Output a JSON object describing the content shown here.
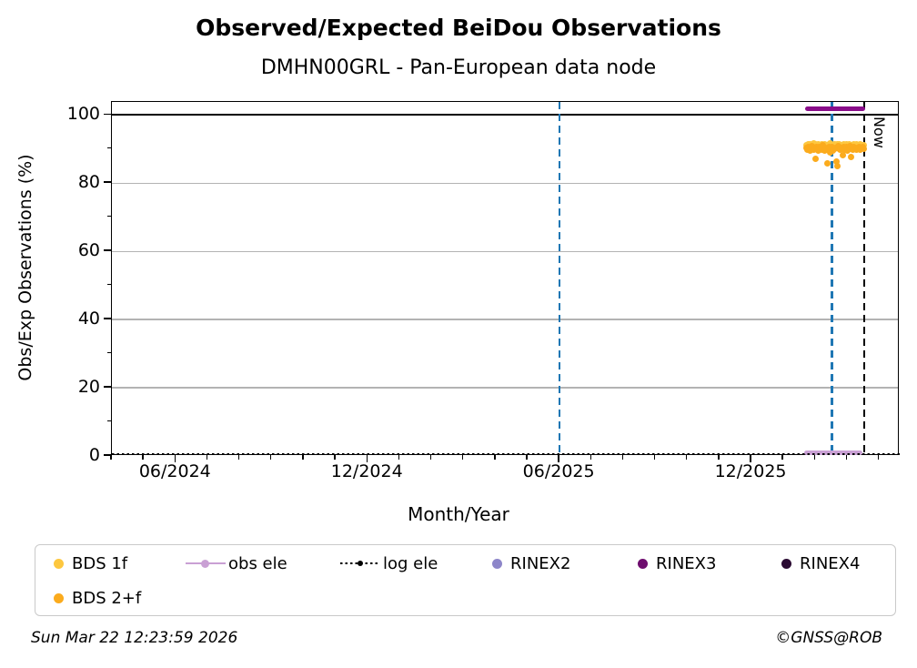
{
  "header": {
    "title": "Observed/Expected BeiDou Observations",
    "subtitle": "DMHN00GRL - Pan-European data node"
  },
  "chart_data": {
    "type": "scatter",
    "title": "Observed/Expected BeiDou Observations",
    "subtitle": "DMHN00GRL - Pan-European data node",
    "xlabel": "Month/Year",
    "ylabel": "Obs/Exp Observations (%)",
    "xlim": [
      2024.25,
      2026.303
    ],
    "ylim": [
      0,
      103.8
    ],
    "x_major_ticks": [
      {
        "t": 2024.4167,
        "label": "06/2024"
      },
      {
        "t": 2024.9167,
        "label": "12/2024"
      },
      {
        "t": 2025.4167,
        "label": "06/2025"
      },
      {
        "t": 2025.9167,
        "label": "12/2025"
      }
    ],
    "x_minor_step_months": 1,
    "y_major_ticks": [
      0,
      20,
      40,
      60,
      80,
      100
    ],
    "y_minor_ticks": [
      10,
      30,
      50,
      70,
      90
    ],
    "grid_y": [
      20,
      40,
      60,
      80
    ],
    "hline": {
      "y": 100,
      "color": "#000000"
    },
    "grid_color": "#b3b3b3",
    "vlines": [
      {
        "name": "vline-blue-jun2025",
        "t": 2025.4167,
        "color": "#1f77b4"
      },
      {
        "name": "vline-blue-feb2026",
        "t": 2026.126,
        "color": "#1f77b4"
      },
      {
        "name": "vline-now",
        "t": 2026.21,
        "color": "#000000",
        "label": "Now"
      }
    ],
    "now_label": "Now",
    "series": [
      {
        "name": "BDS 1f",
        "render": "dots",
        "color": "#fdc73f",
        "t_start": 2026.059,
        "t_step": 0.00272,
        "values": [
          91.2,
          90.8,
          91.5,
          91.0,
          91.3,
          90.7,
          91.1,
          91.6,
          90.9,
          91.4,
          91.0,
          90.8,
          91.3,
          91.1,
          90.7,
          91.5,
          91.2,
          90.9,
          91.4,
          91.0,
          91.1,
          90.8,
          91.3,
          91.6,
          90.9,
          91.2,
          91.0,
          91.4,
          90.8,
          91.1,
          91.3,
          90.9,
          91.5,
          91.0,
          91.2,
          90.7,
          91.4,
          91.1,
          90.8,
          91.3,
          91.0,
          91.5,
          90.9,
          91.2,
          91.1,
          90.7,
          91.3,
          91.0,
          91.4,
          90.9,
          91.2,
          91.0,
          91.5,
          90.8,
          91.1,
          91.0
        ]
      },
      {
        "name": "BDS 2+f",
        "render": "dots",
        "color": "#fbab1d",
        "t_start": 2026.059,
        "t_step": 0.00272,
        "values": [
          90.3,
          89.8,
          90.6,
          90.1,
          89.5,
          90.4,
          90.9,
          89.9,
          90.2,
          87.1,
          90.5,
          90.0,
          89.4,
          90.7,
          90.2,
          89.8,
          91.0,
          90.1,
          89.6,
          90.3,
          85.8,
          89.9,
          90.6,
          88.9,
          90.2,
          90.7,
          89.5,
          90.0,
          90.4,
          86.4,
          85.1,
          90.8,
          90.1,
          89.7,
          90.3,
          88.1,
          90.5,
          89.9,
          90.2,
          90.6,
          89.4,
          90.0,
          90.8,
          87.7,
          90.3,
          89.8,
          90.5,
          90.1,
          89.7,
          90.4,
          90.0,
          90.6,
          89.9,
          90.2,
          90.5,
          90.0
        ]
      },
      {
        "name": "RINEX3",
        "render": "thickline",
        "color": "#8a0d8a",
        "y": 101.8,
        "t0": 2026.057,
        "t1": 2026.213
      },
      {
        "name": "obs ele",
        "render": "thickline",
        "color": "#c9a0d4",
        "y": 0.9,
        "t0": 2026.053,
        "t1": 2026.205
      },
      {
        "name": "log ele",
        "render": "dotline",
        "color": "#000000",
        "y": 0.5,
        "t0": 2024.25,
        "t1": 2026.303
      }
    ]
  },
  "legend": {
    "items": [
      {
        "label": "BDS 1f",
        "marker": "dot",
        "color": "#fdc73f",
        "col": 0,
        "row": 0
      },
      {
        "label": "BDS 2+f",
        "marker": "dot",
        "color": "#fbab1d",
        "col": 0,
        "row": 1
      },
      {
        "label": "obs ele",
        "marker": "line-dot",
        "color": "#c9a0d4",
        "col": 1,
        "row": 0
      },
      {
        "label": "log ele",
        "marker": "dotted-dot",
        "color": "#000000",
        "col": 2,
        "row": 0
      },
      {
        "label": "RINEX2",
        "marker": "dot",
        "color": "#8d86c9",
        "col": 3,
        "row": 0
      },
      {
        "label": "RINEX3",
        "marker": "dot",
        "color": "#6e0d6e",
        "col": 4,
        "row": 0
      },
      {
        "label": "RINEX4",
        "marker": "dot",
        "color": "#2b0b33",
        "col": 5,
        "row": 0
      }
    ],
    "col_offsets": [
      20,
      165,
      335,
      502,
      662,
      820
    ],
    "row_offsets": [
      7,
      45
    ]
  },
  "footer": {
    "timestamp": "Sun Mar 22 12:23:59 2026",
    "copyright": "©GNSS@ROB"
  }
}
